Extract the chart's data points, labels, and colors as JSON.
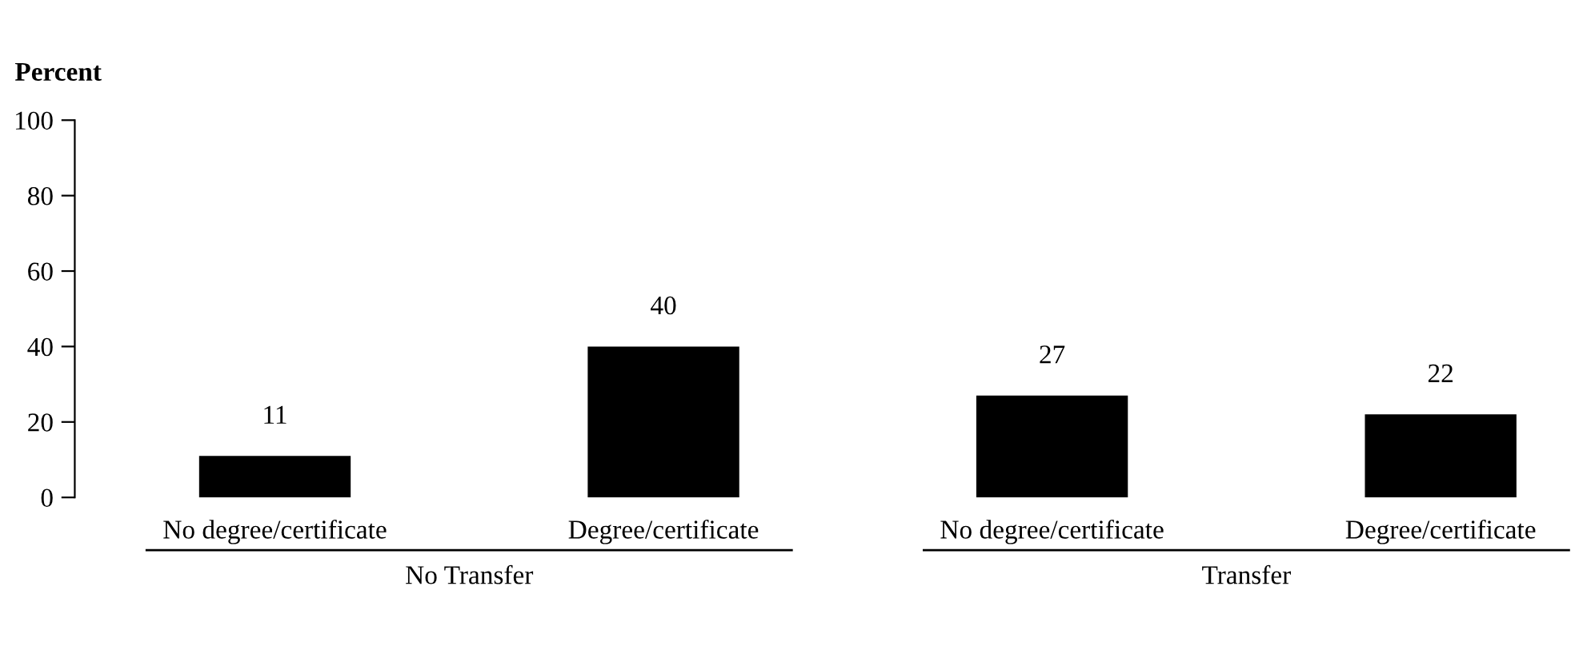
{
  "chart_data": {
    "type": "bar",
    "ylabel": "Percent",
    "categories": [
      "No degree/certificate",
      "Degree/certificate",
      "No degree/certificate",
      "Degree/certificate"
    ],
    "values": [
      11,
      40,
      27,
      22
    ],
    "color": "#000000",
    "ylim": [
      0,
      100
    ],
    "yticks": [
      0,
      20,
      40,
      60,
      80,
      100
    ],
    "grid": false,
    "legend": false,
    "data_labels": true,
    "annotations": [
      "No Transfer",
      "Transfer"
    ]
  }
}
